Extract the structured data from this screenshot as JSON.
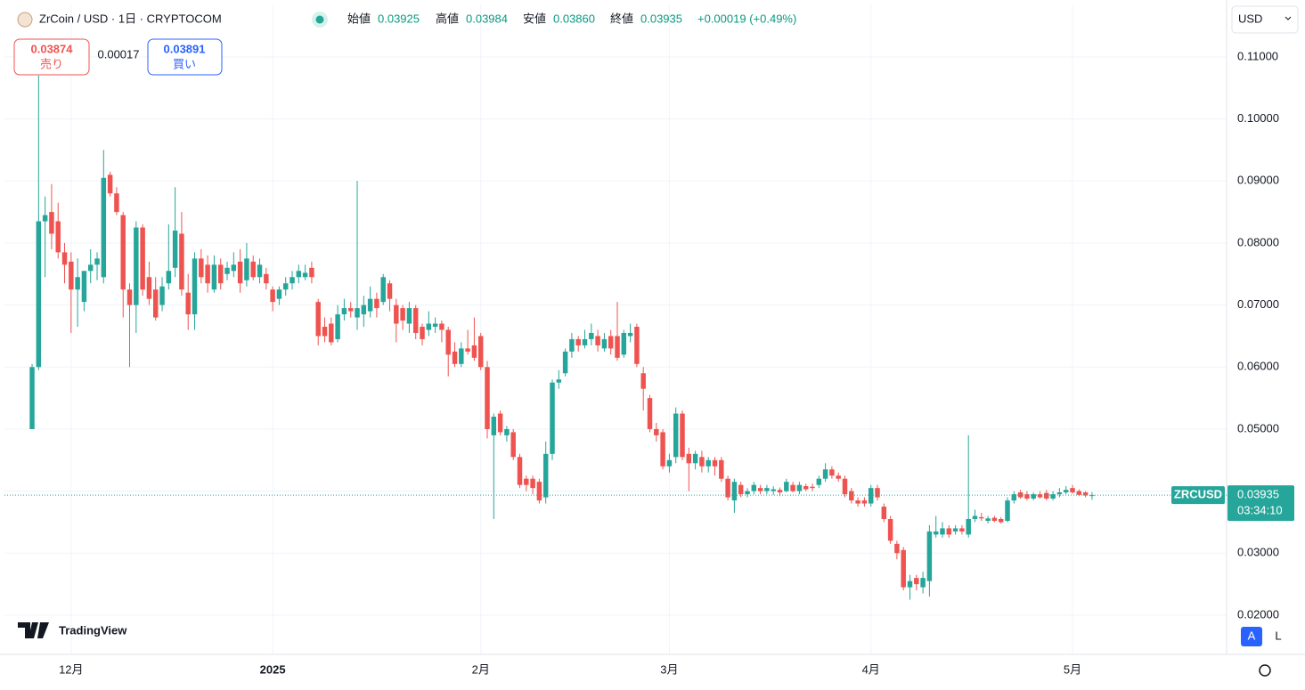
{
  "header": {
    "symbol": "ZrCoin / USD · 1日 · CRYPTOCOM",
    "ohlc": [
      {
        "label": "始値",
        "value": "0.03925"
      },
      {
        "label": "高値",
        "value": "0.03984"
      },
      {
        "label": "安値",
        "value": "0.03860"
      },
      {
        "label": "終値",
        "value": "0.03935"
      }
    ],
    "change": "+0.00019 (+0.49%)"
  },
  "trade": {
    "sell_price": "0.03874",
    "sell_label": "売り",
    "spread": "0.00017",
    "buy_price": "0.03891",
    "buy_label": "買い"
  },
  "currency": "USD",
  "price_label": {
    "symbol": "ZRCUSD",
    "price": "0.03935",
    "countdown": "03:34:10"
  },
  "logo": "TradingView",
  "scale_buttons": [
    "A",
    "L"
  ],
  "chart_data": {
    "type": "candlestick",
    "up_color": "#26a69a",
    "down_color": "#ef5350",
    "grid": true,
    "xlim": [
      -4.25,
      183.7
    ],
    "xticks": [
      {
        "value": 6,
        "label": "12月"
      },
      {
        "value": 37,
        "label": "2025"
      },
      {
        "value": 69,
        "label": "2月"
      },
      {
        "value": 98,
        "label": "3月"
      },
      {
        "value": 129,
        "label": "4月"
      },
      {
        "value": 160,
        "label": "5月"
      }
    ],
    "ylim": [
      0.01368,
      0.11846
    ],
    "yticks": [
      {
        "value": 0.02,
        "label": "0.02000"
      },
      {
        "value": 0.03,
        "label": "0.03000"
      },
      {
        "value": 0.04,
        "label": "0.04000"
      },
      {
        "value": 0.05,
        "label": "0.05000"
      },
      {
        "value": 0.06,
        "label": "0.06000"
      },
      {
        "value": 0.07,
        "label": "0.07000"
      },
      {
        "value": 0.08,
        "label": "0.08000"
      },
      {
        "value": 0.09,
        "label": "0.09000"
      },
      {
        "value": 0.1,
        "label": "0.10000"
      },
      {
        "value": 0.11,
        "label": "0.11000"
      }
    ],
    "candles": [
      [
        0.05,
        0.0605,
        0.05,
        0.06
      ],
      [
        0.06,
        0.107,
        0.0595,
        0.0835
      ],
      [
        0.0835,
        0.0875,
        0.0745,
        0.0845
      ],
      [
        0.085,
        0.0895,
        0.079,
        0.0815
      ],
      [
        0.0835,
        0.0865,
        0.0775,
        0.0785
      ],
      [
        0.0785,
        0.08,
        0.0735,
        0.0765
      ],
      [
        0.077,
        0.0785,
        0.0655,
        0.0725
      ],
      [
        0.0725,
        0.0775,
        0.0665,
        0.0745
      ],
      [
        0.0705,
        0.0755,
        0.069,
        0.0755
      ],
      [
        0.0755,
        0.079,
        0.0735,
        0.0765
      ],
      [
        0.0765,
        0.0785,
        0.074,
        0.0775
      ],
      [
        0.0745,
        0.095,
        0.0735,
        0.0905
      ],
      [
        0.091,
        0.0915,
        0.0875,
        0.088
      ],
      [
        0.088,
        0.089,
        0.0845,
        0.085
      ],
      [
        0.0845,
        0.085,
        0.068,
        0.0725
      ],
      [
        0.0725,
        0.0735,
        0.06,
        0.07
      ],
      [
        0.07,
        0.0835,
        0.0655,
        0.0825
      ],
      [
        0.0825,
        0.083,
        0.0715,
        0.0725
      ],
      [
        0.0745,
        0.077,
        0.07,
        0.071
      ],
      [
        0.0725,
        0.0745,
        0.0675,
        0.068
      ],
      [
        0.07,
        0.0745,
        0.069,
        0.073
      ],
      [
        0.0735,
        0.083,
        0.0725,
        0.0755
      ],
      [
        0.076,
        0.089,
        0.0745,
        0.082
      ],
      [
        0.0815,
        0.085,
        0.0715,
        0.0725
      ],
      [
        0.072,
        0.075,
        0.066,
        0.0685
      ],
      [
        0.0685,
        0.0785,
        0.066,
        0.0775
      ],
      [
        0.0775,
        0.079,
        0.0735,
        0.0745
      ],
      [
        0.0765,
        0.078,
        0.072,
        0.0735
      ],
      [
        0.0725,
        0.078,
        0.072,
        0.0765
      ],
      [
        0.0765,
        0.0775,
        0.0725,
        0.0735
      ],
      [
        0.075,
        0.077,
        0.074,
        0.076
      ],
      [
        0.0755,
        0.0785,
        0.0745,
        0.0765
      ],
      [
        0.077,
        0.079,
        0.072,
        0.0735
      ],
      [
        0.074,
        0.08,
        0.073,
        0.0775
      ],
      [
        0.077,
        0.078,
        0.074,
        0.0745
      ],
      [
        0.0745,
        0.0775,
        0.0735,
        0.0765
      ],
      [
        0.075,
        0.076,
        0.0725,
        0.0735
      ],
      [
        0.0725,
        0.073,
        0.069,
        0.0705
      ],
      [
        0.071,
        0.073,
        0.07,
        0.0725
      ],
      [
        0.0725,
        0.0745,
        0.0715,
        0.0735
      ],
      [
        0.0735,
        0.0755,
        0.0725,
        0.0745
      ],
      [
        0.0745,
        0.0765,
        0.0735,
        0.0755
      ],
      [
        0.0745,
        0.0765,
        0.074,
        0.0752
      ],
      [
        0.076,
        0.077,
        0.0735,
        0.0745
      ],
      [
        0.0705,
        0.071,
        0.0635,
        0.065
      ],
      [
        0.0665,
        0.068,
        0.064,
        0.065
      ],
      [
        0.067,
        0.068,
        0.0635,
        0.064
      ],
      [
        0.0645,
        0.07,
        0.064,
        0.0685
      ],
      [
        0.0685,
        0.071,
        0.0675,
        0.0695
      ],
      [
        0.0695,
        0.0705,
        0.068,
        0.069
      ],
      [
        0.068,
        0.09,
        0.066,
        0.0695
      ],
      [
        0.0685,
        0.0715,
        0.0665,
        0.07
      ],
      [
        0.069,
        0.073,
        0.068,
        0.071
      ],
      [
        0.071,
        0.072,
        0.068,
        0.0695
      ],
      [
        0.0705,
        0.075,
        0.07,
        0.0745
      ],
      [
        0.0735,
        0.074,
        0.069,
        0.071
      ],
      [
        0.07,
        0.071,
        0.064,
        0.067
      ],
      [
        0.0695,
        0.07,
        0.066,
        0.0675
      ],
      [
        0.067,
        0.0705,
        0.0655,
        0.0695
      ],
      [
        0.0695,
        0.07,
        0.0645,
        0.0655
      ],
      [
        0.0665,
        0.067,
        0.0635,
        0.0645
      ],
      [
        0.066,
        0.069,
        0.065,
        0.067
      ],
      [
        0.0665,
        0.068,
        0.0655,
        0.067
      ],
      [
        0.067,
        0.0675,
        0.064,
        0.066
      ],
      [
        0.066,
        0.0665,
        0.0585,
        0.062
      ],
      [
        0.0625,
        0.064,
        0.06,
        0.0605
      ],
      [
        0.0605,
        0.064,
        0.06,
        0.063
      ],
      [
        0.063,
        0.066,
        0.062,
        0.0625
      ],
      [
        0.0635,
        0.068,
        0.061,
        0.0615
      ],
      [
        0.065,
        0.0655,
        0.0595,
        0.06
      ],
      [
        0.06,
        0.061,
        0.0485,
        0.05
      ],
      [
        0.049,
        0.0525,
        0.0355,
        0.052
      ],
      [
        0.0525,
        0.053,
        0.049,
        0.0495
      ],
      [
        0.049,
        0.0505,
        0.048,
        0.05
      ],
      [
        0.0495,
        0.05,
        0.045,
        0.0455
      ],
      [
        0.0455,
        0.046,
        0.0405,
        0.041
      ],
      [
        0.042,
        0.0425,
        0.04,
        0.041
      ],
      [
        0.042,
        0.0425,
        0.0395,
        0.0405
      ],
      [
        0.0415,
        0.042,
        0.038,
        0.0385
      ],
      [
        0.039,
        0.048,
        0.038,
        0.046
      ],
      [
        0.046,
        0.058,
        0.045,
        0.0575
      ],
      [
        0.0575,
        0.0595,
        0.0565,
        0.058
      ],
      [
        0.059,
        0.063,
        0.0585,
        0.0625
      ],
      [
        0.0625,
        0.0655,
        0.0615,
        0.0645
      ],
      [
        0.0645,
        0.065,
        0.0625,
        0.0635
      ],
      [
        0.0635,
        0.066,
        0.063,
        0.0645
      ],
      [
        0.0645,
        0.067,
        0.0635,
        0.0655
      ],
      [
        0.065,
        0.066,
        0.0625,
        0.0635
      ],
      [
        0.063,
        0.0655,
        0.0625,
        0.0645
      ],
      [
        0.065,
        0.066,
        0.062,
        0.063
      ],
      [
        0.065,
        0.0705,
        0.061,
        0.0615
      ],
      [
        0.062,
        0.066,
        0.0615,
        0.0655
      ],
      [
        0.065,
        0.067,
        0.064,
        0.0655
      ],
      [
        0.0665,
        0.067,
        0.06,
        0.0605
      ],
      [
        0.059,
        0.06,
        0.053,
        0.0565
      ],
      [
        0.055,
        0.0555,
        0.0495,
        0.05
      ],
      [
        0.05,
        0.051,
        0.048,
        0.049
      ],
      [
        0.0495,
        0.05,
        0.0435,
        0.044
      ],
      [
        0.044,
        0.046,
        0.043,
        0.045
      ],
      [
        0.0455,
        0.0535,
        0.0445,
        0.0525
      ],
      [
        0.0525,
        0.053,
        0.045,
        0.0455
      ],
      [
        0.046,
        0.047,
        0.04,
        0.0445
      ],
      [
        0.0445,
        0.0465,
        0.0435,
        0.046
      ],
      [
        0.0455,
        0.0465,
        0.043,
        0.044
      ],
      [
        0.044,
        0.0455,
        0.043,
        0.045
      ],
      [
        0.045,
        0.0455,
        0.0425,
        0.044
      ],
      [
        0.045,
        0.0455,
        0.0415,
        0.042
      ],
      [
        0.042,
        0.0425,
        0.0385,
        0.039
      ],
      [
        0.0385,
        0.042,
        0.0365,
        0.0415
      ],
      [
        0.041,
        0.0415,
        0.039,
        0.0395
      ],
      [
        0.0395,
        0.0405,
        0.039,
        0.04
      ],
      [
        0.04,
        0.0415,
        0.0395,
        0.041
      ],
      [
        0.0405,
        0.041,
        0.0395,
        0.04
      ],
      [
        0.04,
        0.041,
        0.0395,
        0.0405
      ],
      [
        0.04,
        0.0408,
        0.0394,
        0.0403
      ],
      [
        0.0402,
        0.0406,
        0.0392,
        0.0398
      ],
      [
        0.04,
        0.042,
        0.0398,
        0.0415
      ],
      [
        0.041,
        0.0415,
        0.0398,
        0.04
      ],
      [
        0.04,
        0.0415,
        0.0395,
        0.041
      ],
      [
        0.0408,
        0.0412,
        0.04,
        0.0403
      ],
      [
        0.0407,
        0.0412,
        0.04,
        0.0405
      ],
      [
        0.041,
        0.0425,
        0.0405,
        0.042
      ],
      [
        0.042,
        0.0445,
        0.0415,
        0.0435
      ],
      [
        0.0435,
        0.044,
        0.042,
        0.0425
      ],
      [
        0.0425,
        0.043,
        0.0415,
        0.042
      ],
      [
        0.042,
        0.0425,
        0.039,
        0.0395
      ],
      [
        0.04,
        0.0405,
        0.038,
        0.0385
      ],
      [
        0.0385,
        0.039,
        0.0375,
        0.038
      ],
      [
        0.0385,
        0.039,
        0.0375,
        0.038
      ],
      [
        0.038,
        0.041,
        0.0375,
        0.0405
      ],
      [
        0.0405,
        0.041,
        0.0385,
        0.039
      ],
      [
        0.0375,
        0.038,
        0.035,
        0.0355
      ],
      [
        0.0355,
        0.036,
        0.0315,
        0.032
      ],
      [
        0.0315,
        0.032,
        0.029,
        0.03
      ],
      [
        0.0305,
        0.031,
        0.024,
        0.0245
      ],
      [
        0.0245,
        0.0265,
        0.0225,
        0.0255
      ],
      [
        0.026,
        0.0265,
        0.024,
        0.025
      ],
      [
        0.0245,
        0.027,
        0.0235,
        0.026
      ],
      [
        0.0255,
        0.0345,
        0.023,
        0.0335
      ],
      [
        0.033,
        0.036,
        0.0325,
        0.0335
      ],
      [
        0.033,
        0.035,
        0.0325,
        0.034
      ],
      [
        0.034,
        0.0345,
        0.0325,
        0.033
      ],
      [
        0.0335,
        0.0345,
        0.033,
        0.034
      ],
      [
        0.034,
        0.0345,
        0.033,
        0.0335
      ],
      [
        0.033,
        0.049,
        0.0325,
        0.0355
      ],
      [
        0.0355,
        0.037,
        0.035,
        0.036
      ],
      [
        0.0358,
        0.0365,
        0.0352,
        0.0356
      ],
      [
        0.0352,
        0.036,
        0.0348,
        0.0356
      ],
      [
        0.0357,
        0.036,
        0.035,
        0.0352
      ],
      [
        0.0355,
        0.0358,
        0.0348,
        0.035
      ],
      [
        0.0352,
        0.039,
        0.035,
        0.0385
      ],
      [
        0.0385,
        0.04,
        0.038,
        0.0395
      ],
      [
        0.0398,
        0.0402,
        0.0388,
        0.039
      ],
      [
        0.0395,
        0.04,
        0.0385,
        0.0388
      ],
      [
        0.0388,
        0.0398,
        0.0385,
        0.0395
      ],
      [
        0.0395,
        0.04,
        0.0388,
        0.039
      ],
      [
        0.0397,
        0.0402,
        0.0385,
        0.0388
      ],
      [
        0.0388,
        0.04,
        0.0385,
        0.0395
      ],
      [
        0.0395,
        0.0405,
        0.039,
        0.0398
      ],
      [
        0.0398,
        0.0408,
        0.0395,
        0.0402
      ],
      [
        0.0405,
        0.041,
        0.0396,
        0.0398
      ],
      [
        0.04,
        0.0403,
        0.0392,
        0.0394
      ],
      [
        0.0398,
        0.04,
        0.039,
        0.0393
      ],
      [
        0.03925,
        0.03984,
        0.0386,
        0.03935
      ]
    ]
  }
}
